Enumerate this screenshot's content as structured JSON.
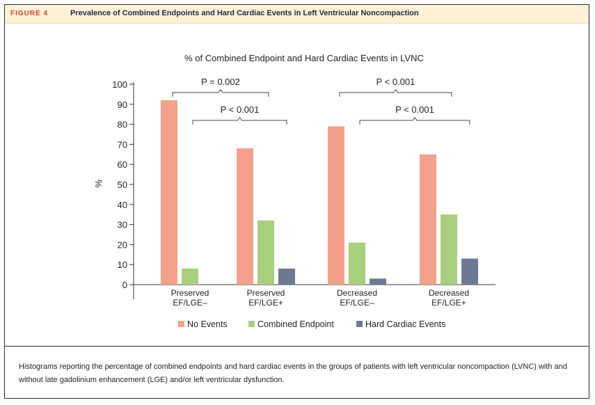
{
  "figure": {
    "label": "FIGURE 4",
    "title": "Prevalence of Combined Endpoints and Hard Cardiac Events in Left Ventricular Noncompaction",
    "caption": "Histograms reporting the percentage of combined endpoints and hard cardiac events in the groups of patients with left ventricular noncompaction (LVNC) with and without late gadolinium enhancement (LGE) and/or left ventricular dysfunction."
  },
  "chart_data": {
    "type": "bar",
    "title": "% of Combined Endpoint and Hard Cardiac Events in LVNC",
    "ylabel": "%",
    "xlabel": "",
    "ylim": [
      0,
      100
    ],
    "yticks": [
      0,
      10,
      20,
      30,
      40,
      50,
      60,
      70,
      80,
      90,
      100
    ],
    "categories": [
      [
        "Preserved",
        "EF/LGE–"
      ],
      [
        "Preserved",
        "EF/LGE+"
      ],
      [
        "Decreased",
        "EF/LGE–"
      ],
      [
        "Decreased",
        "EF/LGE+"
      ]
    ],
    "series": [
      {
        "name": "No Events",
        "color": "#f4a08a",
        "values": [
          92,
          68,
          79,
          65
        ]
      },
      {
        "name": "Combined Endpoint",
        "color": "#a9cf7e",
        "values": [
          8,
          32,
          21,
          35
        ]
      },
      {
        "name": "Hard Cardiac Events",
        "color": "#6e7a93",
        "values": [
          0,
          8,
          3,
          13
        ]
      }
    ],
    "annotations": [
      {
        "text": "P = 0.002",
        "from_group": 0,
        "to_group": 1,
        "level": 2
      },
      {
        "text": "P < 0.001",
        "from_group": 0,
        "to_group": 1,
        "level": 1
      },
      {
        "text": "P < 0.001",
        "from_group": 2,
        "to_group": 3,
        "level": 2
      },
      {
        "text": "P < 0.001",
        "from_group": 2,
        "to_group": 3,
        "level": 1
      }
    ],
    "legend_position": "bottom"
  }
}
